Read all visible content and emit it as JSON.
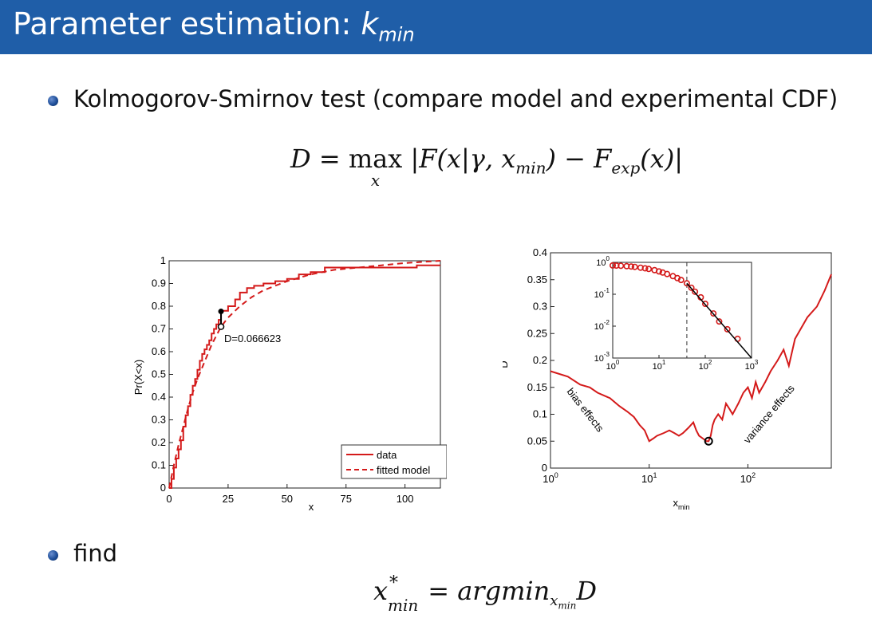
{
  "slide": {
    "title_text": "Parameter estimation:",
    "title_var": "k",
    "title_sub": "min",
    "bullet1": "Kolmogorov-Smirnov test (compare model and experimental CDF)",
    "bullet2": "find",
    "eq1": {
      "lhs": "D",
      "eq": "=",
      "op": "max",
      "op_sub": "x",
      "body_open": "|F(x|γ, ",
      "xmin": "x",
      "xmin_sub": "min",
      "mid": ") − F",
      "fexp_sub": "exp",
      "end": "(x)|"
    },
    "eq2": {
      "x": "x",
      "sup": "*",
      "sub": "min",
      "rest": "= argmin",
      "arg_sub_x": "x",
      "arg_sub_sub": "min",
      "D": "D"
    }
  },
  "chart_data": [
    {
      "type": "line",
      "title": "",
      "xlabel": "x",
      "ylabel": "Pr(X<x)",
      "xlim": [
        0,
        115
      ],
      "ylim": [
        0,
        1
      ],
      "xticks": [
        0,
        25,
        50,
        75,
        100
      ],
      "yticks": [
        0,
        0.1,
        0.2,
        0.3,
        0.4,
        0.5,
        0.6,
        0.7,
        0.8,
        0.9,
        1
      ],
      "xtick_labels": [
        "0",
        "25",
        "50",
        "75",
        "100"
      ],
      "ytick_labels": [
        "0",
        "0.1",
        "0.2",
        "0.3",
        "0.4",
        "0.5",
        "0.6",
        "0.7",
        "0.8",
        "0.9",
        "1"
      ],
      "legend": [
        "data",
        "fitted model"
      ],
      "legend_position": "bottom-right",
      "annotation": "D=0.066623",
      "ks_point": {
        "x": 22,
        "y_data": 0.777,
        "y_model": 0.71
      },
      "series": [
        {
          "name": "data",
          "style": "solid",
          "x": [
            0,
            1,
            2,
            3,
            4,
            5,
            6,
            7,
            8,
            9,
            10,
            11,
            12,
            13,
            14,
            15,
            16,
            17,
            18,
            19,
            20,
            21,
            22,
            25,
            28,
            30,
            33,
            36,
            40,
            45,
            50,
            55,
            60,
            66,
            80,
            90,
            105,
            115
          ],
          "y": [
            0,
            0.04,
            0.09,
            0.13,
            0.17,
            0.21,
            0.27,
            0.32,
            0.36,
            0.41,
            0.45,
            0.48,
            0.52,
            0.56,
            0.59,
            0.61,
            0.63,
            0.65,
            0.68,
            0.7,
            0.72,
            0.74,
            0.78,
            0.8,
            0.83,
            0.86,
            0.88,
            0.89,
            0.9,
            0.91,
            0.92,
            0.94,
            0.95,
            0.97,
            0.97,
            0.97,
            0.98,
            0.98
          ]
        },
        {
          "name": "fitted model",
          "style": "dashed",
          "x": [
            0,
            2,
            4,
            6,
            8,
            10,
            12,
            14,
            16,
            18,
            20,
            22,
            25,
            30,
            35,
            40,
            50,
            60,
            70,
            80,
            90,
            100,
            115
          ],
          "y": [
            0,
            0.1,
            0.19,
            0.27,
            0.35,
            0.42,
            0.48,
            0.53,
            0.58,
            0.63,
            0.67,
            0.71,
            0.75,
            0.8,
            0.84,
            0.87,
            0.91,
            0.94,
            0.96,
            0.97,
            0.98,
            0.99,
            1.0
          ]
        }
      ]
    },
    {
      "type": "line",
      "title": "",
      "xlabel": "x",
      "xlabel_sub": "min",
      "ylabel": "D",
      "xscale": "log",
      "xlim": [
        1,
        700
      ],
      "ylim": [
        0,
        0.4
      ],
      "xticks": [
        1,
        10,
        100
      ],
      "xtick_bases": [
        "10",
        "10",
        "10"
      ],
      "xtick_exps": [
        "0",
        "1",
        "2"
      ],
      "yticks": [
        0,
        0.05,
        0.1,
        0.15,
        0.2,
        0.25,
        0.3,
        0.35,
        0.4
      ],
      "ytick_labels": [
        "0",
        "0.05",
        "0.1",
        "0.15",
        "0.2",
        "0.25",
        "0.3",
        "0.35",
        "0.4"
      ],
      "annotations": [
        "bias effects",
        "variance effects"
      ],
      "min_point": {
        "x": 40,
        "y": 0.05
      },
      "series": [
        {
          "name": "",
          "style": "solid",
          "x": [
            1,
            1.5,
            2,
            2.5,
            3,
            4,
            5,
            6,
            7,
            8,
            9,
            10,
            11,
            12,
            14,
            16,
            18,
            20,
            22,
            25,
            28,
            30,
            32,
            35,
            38,
            40,
            42,
            44,
            46,
            50,
            55,
            60,
            65,
            70,
            80,
            90,
            100,
            110,
            120,
            130,
            150,
            170,
            200,
            230,
            260,
            300,
            400,
            500,
            600,
            700
          ],
          "y": [
            0.18,
            0.17,
            0.155,
            0.15,
            0.14,
            0.13,
            0.115,
            0.105,
            0.095,
            0.08,
            0.07,
            0.05,
            0.055,
            0.06,
            0.065,
            0.07,
            0.065,
            0.06,
            0.065,
            0.075,
            0.085,
            0.07,
            0.06,
            0.055,
            0.05,
            0.05,
            0.06,
            0.08,
            0.09,
            0.1,
            0.09,
            0.12,
            0.11,
            0.1,
            0.12,
            0.14,
            0.15,
            0.13,
            0.16,
            0.14,
            0.16,
            0.18,
            0.2,
            0.22,
            0.19,
            0.24,
            0.28,
            0.3,
            0.33,
            0.36
          ]
        }
      ],
      "inset": {
        "type": "scatter",
        "xscale": "log",
        "yscale": "log",
        "xlim": [
          1,
          1000
        ],
        "ylim": [
          0.001,
          1
        ],
        "xtick_bases": [
          "10",
          "10",
          "10",
          "10"
        ],
        "xtick_exps": [
          "0",
          "1",
          "2",
          "3"
        ],
        "ytick_bases": [
          "10",
          "10",
          "10",
          "10"
        ],
        "ytick_exps": [
          "0",
          "-1",
          "-2",
          "-3"
        ],
        "vline_x": 40,
        "points_x": [
          1,
          1.2,
          1.5,
          2,
          2.5,
          3,
          4,
          5,
          6,
          8,
          10,
          12,
          15,
          20,
          25,
          30,
          40,
          50,
          60,
          80,
          100,
          150,
          200,
          300,
          500
        ],
        "points_y": [
          0.8,
          0.79,
          0.78,
          0.76,
          0.74,
          0.72,
          0.68,
          0.65,
          0.62,
          0.57,
          0.52,
          0.48,
          0.43,
          0.37,
          0.32,
          0.28,
          0.22,
          0.16,
          0.12,
          0.08,
          0.05,
          0.025,
          0.014,
          0.008,
          0.004
        ],
        "fit_x": [
          40,
          1000
        ],
        "fit_y": [
          0.22,
          0.001
        ]
      }
    }
  ]
}
